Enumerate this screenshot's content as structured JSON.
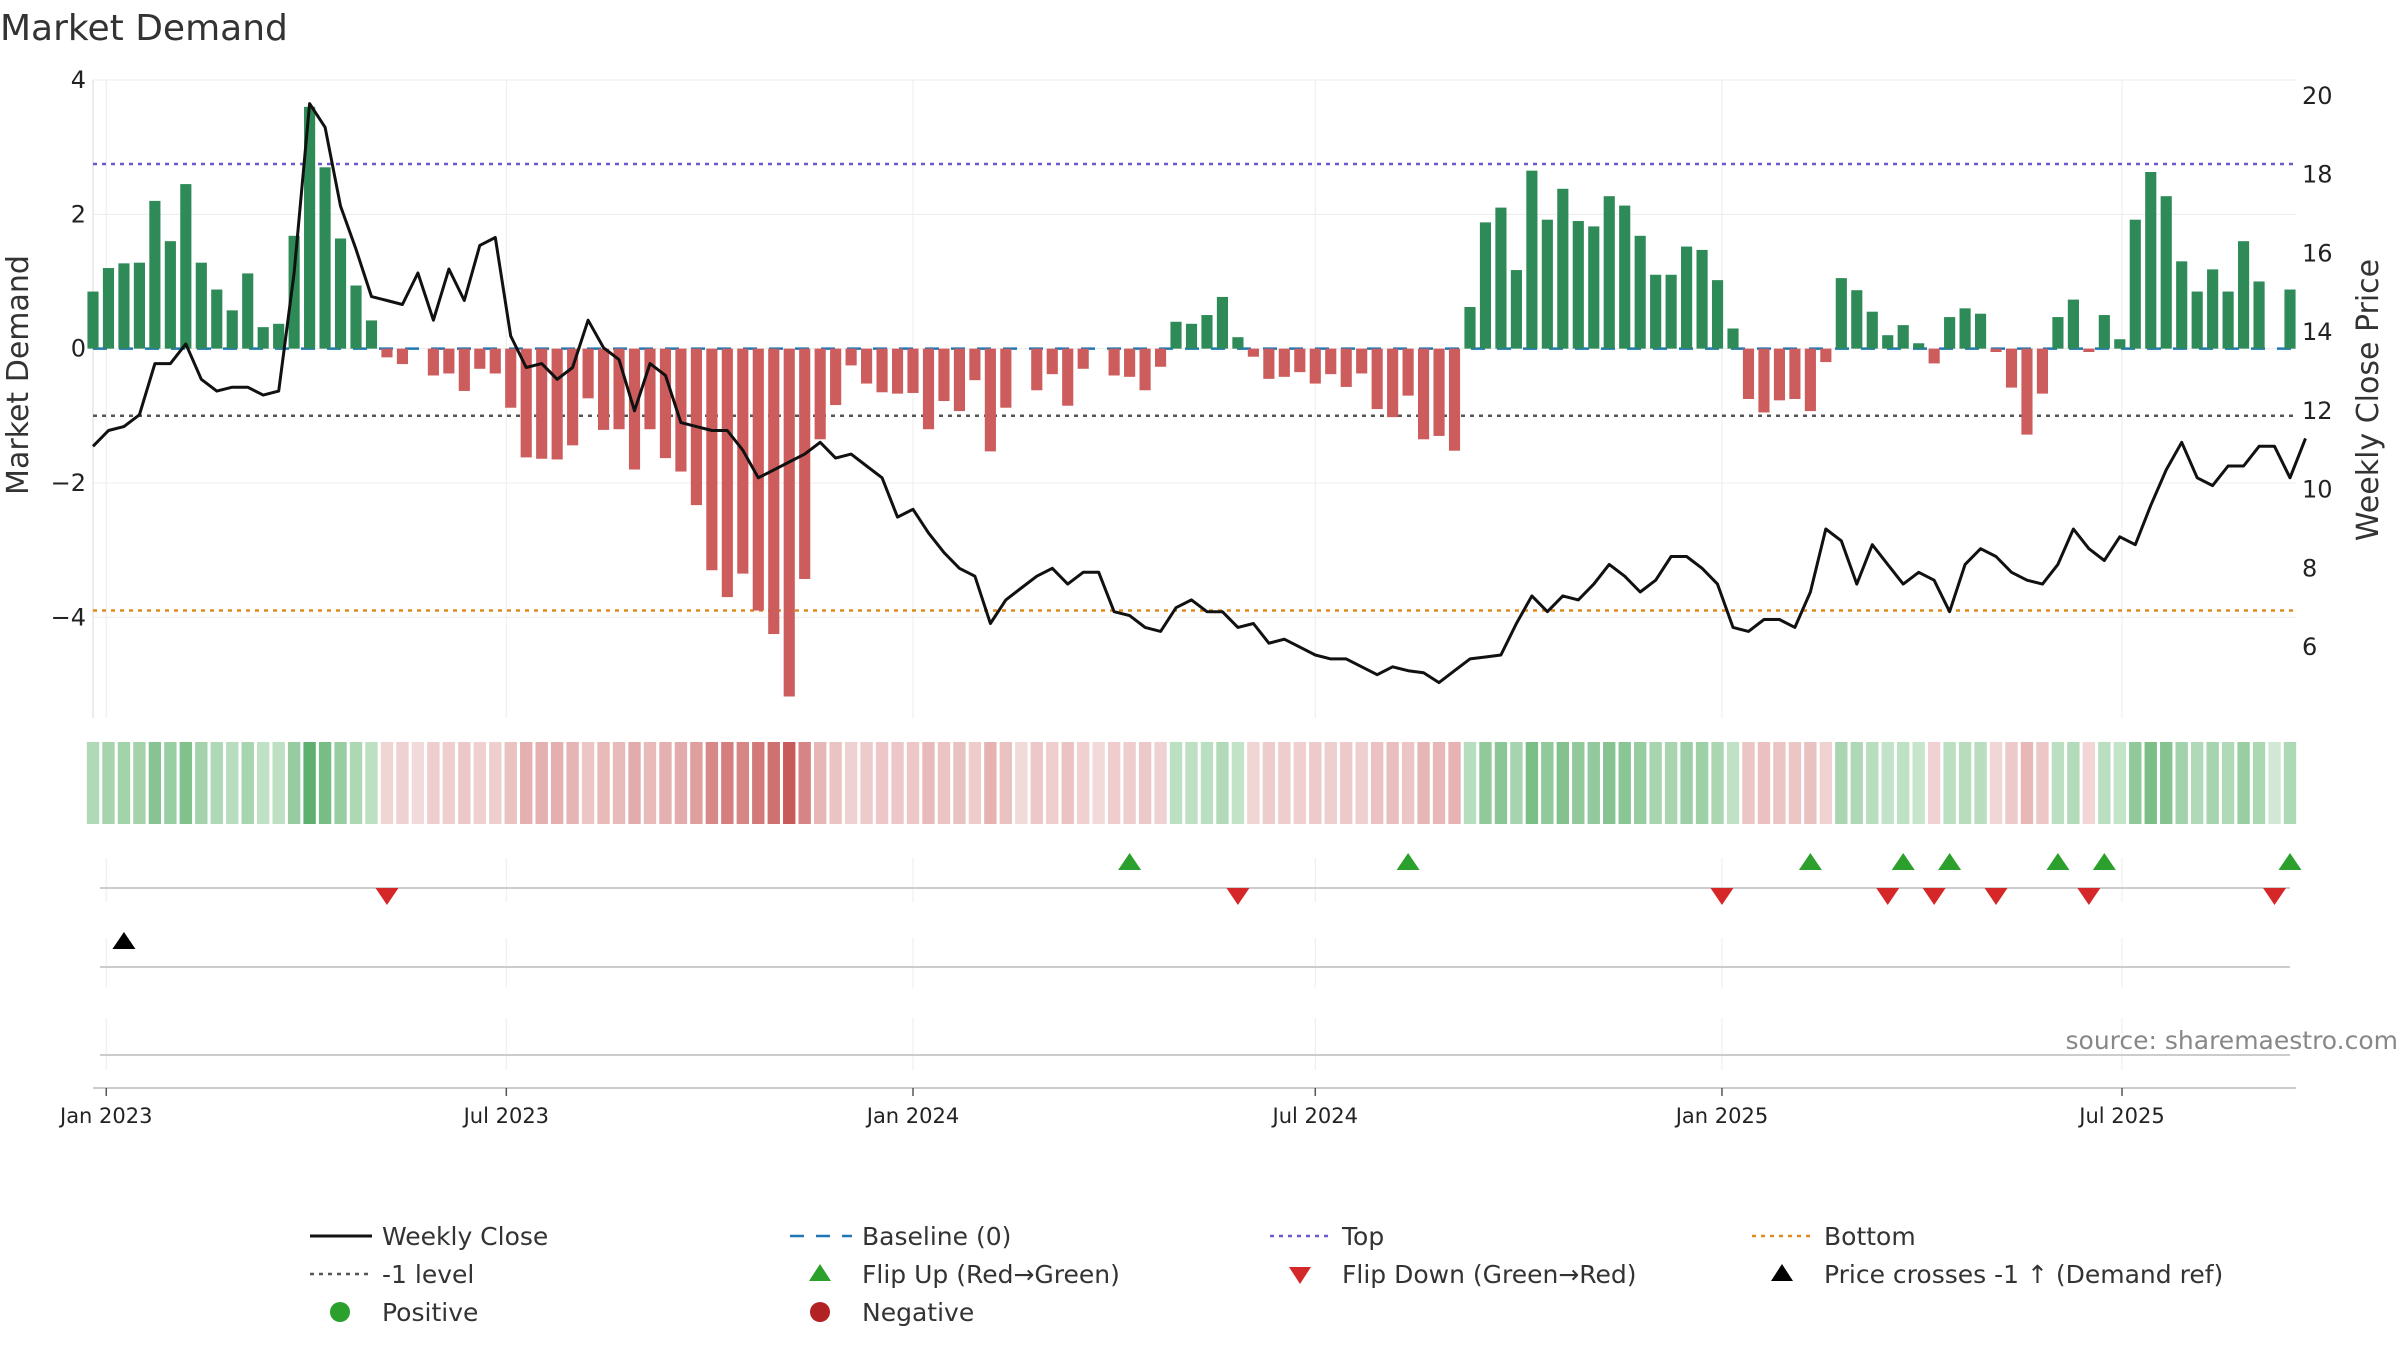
{
  "chart_data": {
    "type": "bar",
    "title": "Market Demand",
    "ylabel_left": "Market Demand",
    "ylabel_right": "Weekly Close Price",
    "source": "source: sharemaestro.com",
    "ylim_left": [
      -5.5,
      4.0
    ],
    "ylim_right": [
      4.2,
      20.4
    ],
    "yticks_left": [
      {
        "value": 4,
        "label": "4"
      },
      {
        "value": 2,
        "label": "2"
      },
      {
        "value": 0,
        "label": "0"
      },
      {
        "value": -2,
        "label": "−2"
      },
      {
        "value": -4,
        "label": "−4"
      }
    ],
    "yticks_right": [
      {
        "value": 20,
        "label": "20"
      },
      {
        "value": 18,
        "label": "18"
      },
      {
        "value": 16,
        "label": "16"
      },
      {
        "value": 14,
        "label": "14"
      },
      {
        "value": 12,
        "label": "12"
      },
      {
        "value": 10,
        "label": "10"
      },
      {
        "value": 8,
        "label": "8"
      },
      {
        "value": 6,
        "label": "6"
      }
    ],
    "x_start": "2022-12-26",
    "x_end": "2025-09-15",
    "xticks": [
      {
        "date": "2023-01-01",
        "label": "Jan 2023"
      },
      {
        "date": "2023-07-01",
        "label": "Jul 2023"
      },
      {
        "date": "2024-01-01",
        "label": "Jan 2024"
      },
      {
        "date": "2024-07-01",
        "label": "Jul 2024"
      },
      {
        "date": "2025-01-01",
        "label": "Jan 2025"
      },
      {
        "date": "2025-07-01",
        "label": "Jul 2025"
      }
    ],
    "reference_lines": {
      "top": 2.75,
      "bottom": -3.9,
      "minus_one": -1.0,
      "baseline": 0
    },
    "series": [
      {
        "name": "Market Demand",
        "start": "2022-12-26",
        "interval_days": 7,
        "values": [
          0.85,
          1.2,
          1.27,
          1.28,
          2.2,
          1.6,
          2.45,
          1.28,
          0.88,
          0.57,
          1.12,
          0.32,
          0.37,
          1.68,
          3.6,
          2.7,
          1.64,
          0.94,
          0.42,
          -0.13,
          -0.23,
          0,
          -0.4,
          -0.37,
          -0.63,
          -0.3,
          -0.37,
          -0.88,
          -1.62,
          -1.64,
          -1.65,
          -1.44,
          -0.74,
          -1.21,
          -1.2,
          -1.8,
          -1.2,
          -1.63,
          -1.83,
          -2.33,
          -3.3,
          -3.7,
          -3.35,
          -3.9,
          -4.25,
          -5.18,
          -3.43,
          -1.35,
          -0.84,
          -0.25,
          -0.52,
          -0.65,
          -0.67,
          -0.66,
          -1.2,
          -0.78,
          -0.93,
          -0.47,
          -1.53,
          -0.88,
          0,
          -0.62,
          -0.38,
          -0.85,
          -0.3,
          0,
          -0.4,
          -0.42,
          -0.62,
          -0.27,
          0.4,
          0.37,
          0.5,
          0.77,
          0.17,
          -0.12,
          -0.45,
          -0.42,
          -0.35,
          -0.52,
          -0.38,
          -0.57,
          -0.37,
          -0.9,
          -1.02,
          -0.7,
          -1.35,
          -1.3,
          -1.52,
          0.62,
          1.88,
          2.1,
          1.17,
          2.65,
          1.92,
          2.38,
          1.9,
          1.82,
          2.27,
          2.13,
          1.68,
          1.1,
          1.1,
          1.52,
          1.47,
          1.02,
          0.3,
          -0.75,
          -0.95,
          -0.77,
          -0.75,
          -0.93,
          -0.2,
          1.05,
          0.87,
          0.55,
          0.2,
          0.35,
          0.08,
          -0.22,
          0.47,
          0.6,
          0.52,
          -0.05,
          -0.58,
          -1.28,
          -0.67,
          0.47,
          0.73,
          -0.05,
          0.5,
          0.14,
          1.92,
          2.63,
          2.27,
          1.3,
          0.85,
          1.18,
          0.85,
          1.6,
          1.0,
          0.0,
          0.88
        ]
      },
      {
        "name": "Weekly Close",
        "start": "2022-12-26",
        "interval_days": 7,
        "values": [
          11.1,
          11.5,
          11.6,
          11.9,
          13.2,
          13.2,
          13.7,
          12.8,
          12.5,
          12.6,
          12.6,
          12.4,
          12.5,
          15.5,
          19.8,
          19.2,
          17.2,
          16.1,
          14.9,
          14.8,
          14.7,
          15.5,
          14.3,
          15.6,
          14.8,
          16.2,
          16.4,
          13.9,
          13.1,
          13.2,
          12.8,
          13.1,
          14.3,
          13.6,
          13.3,
          12.0,
          13.2,
          12.9,
          11.7,
          11.6,
          11.5,
          11.5,
          11.0,
          10.3,
          10.5,
          10.7,
          10.9,
          11.2,
          10.8,
          10.9,
          10.6,
          10.3,
          9.3,
          9.5,
          8.9,
          8.4,
          8.0,
          7.8,
          6.6,
          7.2,
          7.5,
          7.8,
          8.0,
          7.6,
          7.9,
          7.9,
          6.9,
          6.8,
          6.5,
          6.4,
          7.0,
          7.2,
          6.9,
          6.9,
          6.5,
          6.6,
          6.1,
          6.2,
          6.0,
          5.8,
          5.7,
          5.7,
          5.5,
          5.3,
          5.5,
          5.4,
          5.35,
          5.1,
          5.4,
          5.7,
          5.75,
          5.8,
          6.6,
          7.3,
          6.9,
          7.3,
          7.2,
          7.6,
          8.1,
          7.8,
          7.4,
          7.7,
          8.3,
          8.3,
          8.0,
          7.6,
          6.5,
          6.4,
          6.7,
          6.7,
          6.5,
          7.4,
          9.0,
          8.7,
          7.6,
          8.6,
          8.1,
          7.6,
          7.9,
          7.7,
          6.9,
          8.1,
          8.5,
          8.3,
          7.9,
          7.7,
          7.6,
          8.1,
          9.0,
          8.5,
          8.2,
          8.8,
          8.6,
          9.6,
          10.5,
          11.2,
          10.3,
          10.1,
          10.6,
          10.6,
          11.1,
          11.1,
          10.3,
          11.3
        ]
      },
      {
        "name": "Flip Up (Red→Green)",
        "dates": [
          "2024-04-08",
          "2024-08-12",
          "2025-02-10",
          "2025-03-24",
          "2025-04-14",
          "2025-06-02",
          "2025-06-23",
          "2025-09-15"
        ]
      },
      {
        "name": "Flip Down (Green→Red)",
        "dates": [
          "2023-05-08",
          "2024-05-27",
          "2025-01-01",
          "2025-03-17",
          "2025-04-07",
          "2025-05-05",
          "2025-06-16",
          "2025-09-08"
        ]
      },
      {
        "name": "Price crosses -1 ↑ (Demand ref)",
        "dates": [
          "2023-01-09"
        ]
      }
    ],
    "legend": [
      {
        "label": "Weekly Close",
        "kind": "line",
        "color": "#111111"
      },
      {
        "label": "Baseline (0)",
        "kind": "dash",
        "color": "#1f77b4"
      },
      {
        "label": "Top",
        "kind": "dot",
        "color": "#6a5acd"
      },
      {
        "label": "Bottom",
        "kind": "dot",
        "color": "#e08a1e"
      },
      {
        "label": "-1 level",
        "kind": "dot",
        "color": "#555555"
      },
      {
        "label": "Flip Up (Red→Green)",
        "kind": "tri-up",
        "color": "#2ca02c"
      },
      {
        "label": "Flip Down (Green→Red)",
        "kind": "tri-down",
        "color": "#d62728"
      },
      {
        "label": "Price crosses -1 ↑ (Demand ref)",
        "kind": "tri-up",
        "color": "#000000"
      },
      {
        "label": "Positive",
        "kind": "dot-marker",
        "color": "#2ca02c"
      },
      {
        "label": "Negative",
        "kind": "dot-marker",
        "color": "#b22222"
      }
    ],
    "colors": {
      "positive": "#2e8b57",
      "negative": "#cd5c5c",
      "line": "#111111"
    }
  }
}
